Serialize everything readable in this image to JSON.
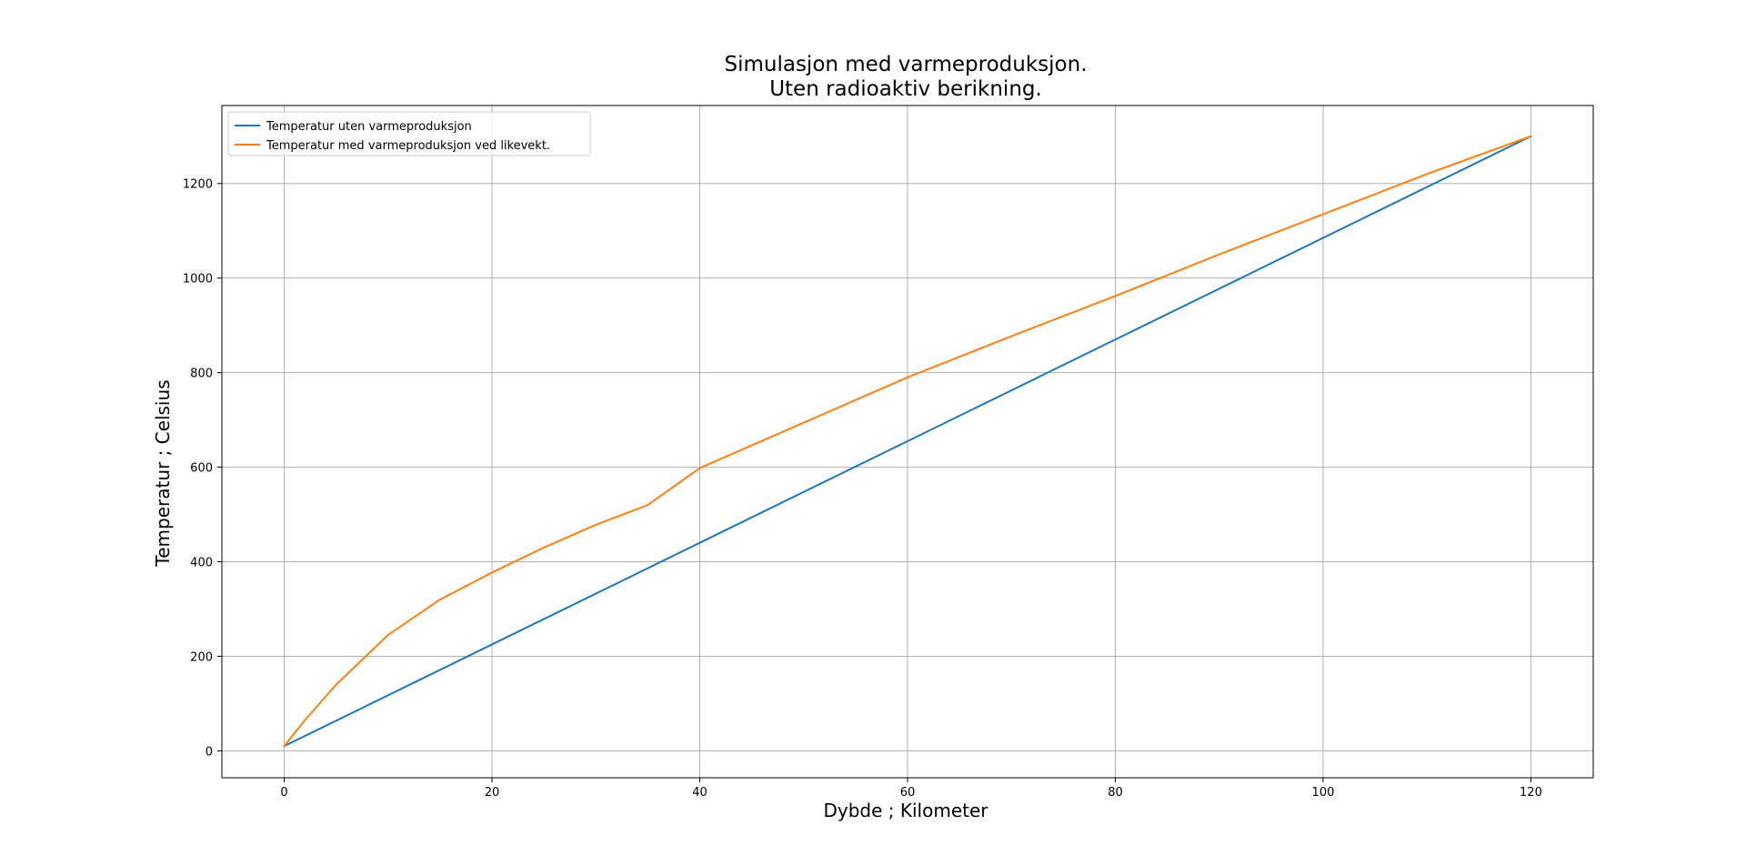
{
  "chart_data": {
    "type": "line",
    "title": "Simulasjon med varmeproduksjon.",
    "subtitle": "Uten radioaktiv berikning.",
    "xlabel": "Dybde ; Kilometer",
    "ylabel": "Temperatur ; Celsius",
    "xlim": [
      -6,
      126
    ],
    "ylim": [
      -57,
      1365
    ],
    "xticks": [
      0,
      20,
      40,
      60,
      80,
      100,
      120
    ],
    "yticks": [
      0,
      200,
      400,
      600,
      800,
      1000,
      1200
    ],
    "grid": true,
    "legend_position": "top-left",
    "series": [
      {
        "name": "Temperatur uten varmeproduksjon",
        "color": "#1f77b4",
        "x": [
          0,
          20,
          40,
          60,
          80,
          100,
          120
        ],
        "y": [
          10,
          225,
          440,
          655,
          870,
          1085,
          1300
        ]
      },
      {
        "name": "Temperatur med varmeproduksjon ved likevekt.",
        "color": "#ff7f0e",
        "x": [
          0,
          2,
          5,
          10,
          15,
          20,
          25,
          30,
          35,
          40,
          50,
          60,
          70,
          80,
          90,
          100,
          110,
          120
        ],
        "y": [
          10,
          65,
          140,
          245,
          320,
          377,
          430,
          478,
          520,
          598,
          694,
          790,
          877,
          962,
          1050,
          1135,
          1220,
          1300
        ]
      }
    ]
  }
}
